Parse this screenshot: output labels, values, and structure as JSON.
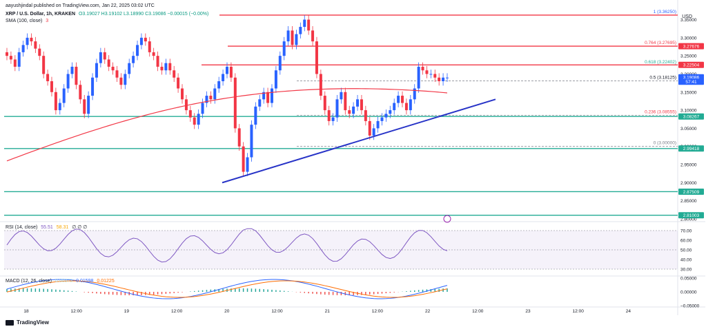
{
  "header": {
    "author": "aayushjindal published on TradingView.com, Jan 22, 2025 03:02 UTC",
    "symbol_line": "XRP / U.S. Dollar, 1h, KRAKEN",
    "ohlc": "O3.19027 H3.19102 L3.18990 C3.19086 −0.00015 (−0.00%)",
    "sma_label": "SMA (100, close)",
    "sma_value": "3"
  },
  "currency": "USD",
  "price_axis": {
    "ticks": [
      "3.35000",
      "3.30000",
      "3.25000",
      "3.20000",
      "3.15000",
      "3.10000",
      "3.05000",
      "3.00000",
      "2.95000",
      "2.90000",
      "2.85000",
      "2.80000"
    ],
    "tags": [
      {
        "label": "3.27676",
        "color": "#f23645"
      },
      {
        "label": "3.22504",
        "color": "#f23645"
      },
      {
        "label": "3.19086",
        "color": "#2962ff"
      },
      {
        "label": "57:41",
        "color": "#2962ff"
      },
      {
        "label": "3.08267",
        "color": "#22ab94"
      },
      {
        "label": "2.99418",
        "color": "#22ab94"
      },
      {
        "label": "2.87509",
        "color": "#22ab94"
      },
      {
        "label": "2.81003",
        "color": "#22ab94"
      }
    ]
  },
  "fib_labels": [
    {
      "text": "1 (3.36250)",
      "color": "#2962ff"
    },
    {
      "text": "0.764 (3.27695)",
      "color": "#f23645"
    },
    {
      "text": "0.618 (3.22402)",
      "color": "#22ab94"
    },
    {
      "text": "0.5 (3.18125)",
      "color": "#131722"
    },
    {
      "text": "0.236 (3.08555)",
      "color": "#f23645"
    },
    {
      "text": "0 (3.00000)",
      "color": "#787b86"
    }
  ],
  "time_axis": [
    "18",
    "12:00",
    "19",
    "12:00",
    "20",
    "12:00",
    "21",
    "12:00",
    "22",
    "12:00",
    "23",
    "12:00",
    "24"
  ],
  "rsi": {
    "label": "RSI (14, close)",
    "value": "55.51",
    "value2": "58.31",
    "empty": "∅ ∅ ∅",
    "ticks": [
      "70.00",
      "60.00",
      "50.00",
      "40.00",
      "30.00"
    ]
  },
  "macd": {
    "label": "MACD (12, 26, close)",
    "hist": "0.00373",
    "macd": "0.01598",
    "signal": "0.01225",
    "ticks": [
      "0.05000",
      "0.00000",
      "−0.05000"
    ]
  },
  "footer": {
    "brand": "TradingView"
  },
  "colors": {
    "up": "#2962ff",
    "down": "#f23645",
    "resistance": "#f23645",
    "support": "#22ab94",
    "trendline": "#2733c7",
    "sma": "#f23645"
  },
  "chart_data": {
    "type": "candlestick",
    "title": "XRP / U.S. Dollar, 1h, KRAKEN",
    "ylabel": "USD",
    "ylim": [
      2.8,
      3.37
    ],
    "x_labels": [
      "18",
      "12:00",
      "19",
      "12:00",
      "20",
      "12:00",
      "21",
      "12:00",
      "22",
      "12:00",
      "23",
      "12:00",
      "24"
    ],
    "resistance_levels": [
      3.3625,
      3.27676,
      3.22504
    ],
    "support_levels": [
      3.08267,
      2.99418,
      2.87509,
      2.81003
    ],
    "fib_levels": [
      {
        "ratio": "1",
        "value": 3.3625
      },
      {
        "ratio": "0.764",
        "value": 3.27695
      },
      {
        "ratio": "0.618",
        "value": 3.22402
      },
      {
        "ratio": "0.5",
        "value": 3.18125
      },
      {
        "ratio": "0.236",
        "value": 3.08555
      },
      {
        "ratio": "0",
        "value": 3.0
      }
    ],
    "trendline": {
      "from_price": 2.9,
      "to_price": 3.13
    },
    "candles_close": [
      3.25,
      3.24,
      3.22,
      3.26,
      3.28,
      3.3,
      3.29,
      3.27,
      3.25,
      3.2,
      3.18,
      3.15,
      3.1,
      3.12,
      3.16,
      3.2,
      3.22,
      3.17,
      3.13,
      3.09,
      3.14,
      3.19,
      3.23,
      3.26,
      3.24,
      3.22,
      3.21,
      3.19,
      3.17,
      3.2,
      3.23,
      3.25,
      3.28,
      3.3,
      3.29,
      3.26,
      3.25,
      3.22,
      3.21,
      3.23,
      3.21,
      3.19,
      3.16,
      3.13,
      3.1,
      3.08,
      3.06,
      3.09,
      3.12,
      3.14,
      3.13,
      3.16,
      3.18,
      3.2,
      3.22,
      3.19,
      3.05,
      3.0,
      2.93,
      2.97,
      3.06,
      3.11,
      3.13,
      3.15,
      3.12,
      3.16,
      3.21,
      3.25,
      3.29,
      3.32,
      3.28,
      3.31,
      3.33,
      3.35,
      3.32,
      3.29,
      3.2,
      3.14,
      3.1,
      3.07,
      3.08,
      3.13,
      3.15,
      3.1,
      3.09,
      3.11,
      3.13,
      3.1,
      3.07,
      3.03,
      3.05,
      3.07,
      3.08,
      3.09,
      3.1,
      3.12,
      3.14,
      3.12,
      3.1,
      3.13,
      3.16,
      3.22,
      3.21,
      3.2,
      3.2,
      3.19,
      3.18,
      3.19,
      3.19
    ],
    "sma_100_start": 2.96,
    "sma_100_end": 3.16,
    "rsi_start": 55,
    "rsi_end": 55.51,
    "macd_end": 0.01598,
    "signal_end": 0.01225,
    "hist_end": 0.00373
  }
}
